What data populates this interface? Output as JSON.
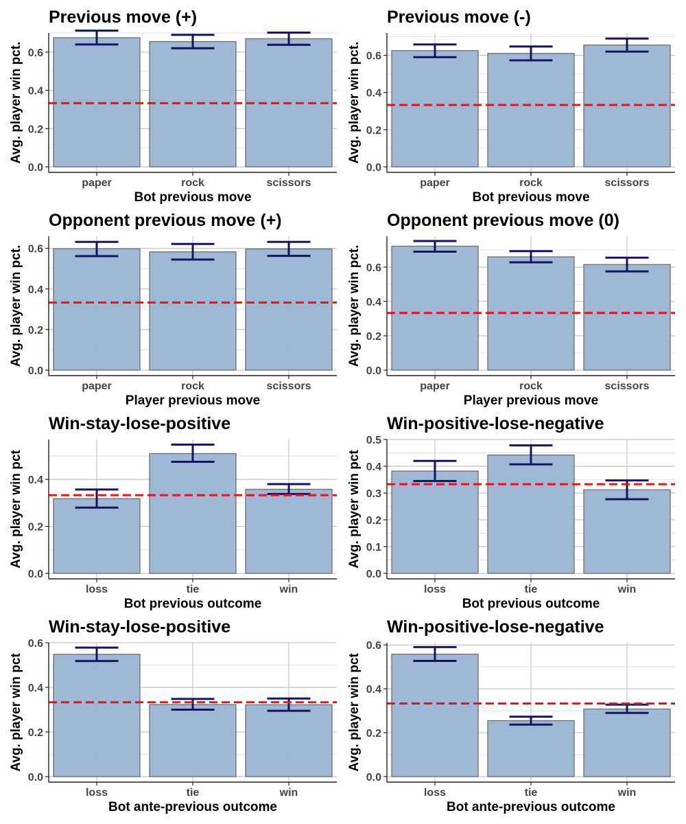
{
  "colors": {
    "bar_fill": "#9ab4d4",
    "bar_stroke": "#6e6e6e",
    "error_bar": "#141460",
    "chance_line": "#ee1111",
    "grid_major": "#c4c4c4",
    "grid_minor": "#e2e2e2",
    "axis": "#222222"
  },
  "chart_data": [
    {
      "type": "bar",
      "title": "Previous move (+)",
      "xlabel": "Bot previous move",
      "ylabel": "Avg. player win pct.",
      "categories": [
        "paper",
        "rock",
        "scissors"
      ],
      "values": [
        0.675,
        0.655,
        0.67
      ],
      "error_low": [
        0.64,
        0.62,
        0.638
      ],
      "error_high": [
        0.712,
        0.69,
        0.702
      ],
      "reference_line": 0.333,
      "ylim": [
        0,
        0.7
      ],
      "yticks": [
        0.0,
        0.2,
        0.4,
        0.6
      ],
      "ytick_labels": [
        "0.0",
        "0.2",
        "0.4",
        "0.6"
      ],
      "grid": true
    },
    {
      "type": "bar",
      "title": "Previous move (-)",
      "xlabel": "Bot previous move",
      "ylabel": "Avg. player win pct.",
      "categories": [
        "paper",
        "rock",
        "scissors"
      ],
      "values": [
        0.625,
        0.61,
        0.655
      ],
      "error_low": [
        0.59,
        0.573,
        0.62
      ],
      "error_high": [
        0.658,
        0.647,
        0.69
      ],
      "reference_line": 0.333,
      "ylim": [
        0,
        0.72
      ],
      "yticks": [
        0.0,
        0.2,
        0.4,
        0.6
      ],
      "ytick_labels": [
        "0.0",
        "0.2",
        "0.4",
        "0.6"
      ],
      "grid": true
    },
    {
      "type": "bar",
      "title": "Opponent previous move (+)",
      "xlabel": "Player previous move",
      "ylabel": "Avg. player win pct.",
      "categories": [
        "paper",
        "rock",
        "scissors"
      ],
      "values": [
        0.598,
        0.583,
        0.597
      ],
      "error_low": [
        0.562,
        0.545,
        0.563
      ],
      "error_high": [
        0.632,
        0.622,
        0.632
      ],
      "reference_line": 0.333,
      "ylim": [
        0,
        0.66
      ],
      "yticks": [
        0.0,
        0.2,
        0.4,
        0.6
      ],
      "ytick_labels": [
        "0.0",
        "0.2",
        "0.4",
        "0.6"
      ],
      "grid": true
    },
    {
      "type": "bar",
      "title": "Opponent previous move (0)",
      "xlabel": "Player previous move",
      "ylabel": "Avg. player win pct.",
      "categories": [
        "paper",
        "rock",
        "scissors"
      ],
      "values": [
        0.722,
        0.66,
        0.615
      ],
      "error_low": [
        0.69,
        0.628,
        0.575
      ],
      "error_high": [
        0.752,
        0.693,
        0.655
      ],
      "reference_line": 0.333,
      "ylim": [
        0,
        0.78
      ],
      "yticks": [
        0.0,
        0.2,
        0.4,
        0.6
      ],
      "ytick_labels": [
        "0.0",
        "0.2",
        "0.4",
        "0.6"
      ],
      "grid": true
    },
    {
      "type": "bar",
      "title": "Win-stay-lose-positive",
      "xlabel": "Bot previous outcome",
      "ylabel": "Avg. player win pct",
      "categories": [
        "loss",
        "tie",
        "win"
      ],
      "values": [
        0.318,
        0.51,
        0.358
      ],
      "error_low": [
        0.28,
        0.475,
        0.338
      ],
      "error_high": [
        0.357,
        0.548,
        0.38
      ],
      "reference_line": 0.333,
      "ylim": [
        0,
        0.57
      ],
      "yticks": [
        0.0,
        0.2,
        0.4
      ],
      "ytick_labels": [
        "0.0",
        "0.2",
        "0.4"
      ],
      "grid": true
    },
    {
      "type": "bar",
      "title": "Win-positive-lose-negative",
      "xlabel": "Bot previous outcome",
      "ylabel": "Avg. player win pct",
      "categories": [
        "loss",
        "tie",
        "win"
      ],
      "values": [
        0.382,
        0.442,
        0.312
      ],
      "error_low": [
        0.345,
        0.407,
        0.277
      ],
      "error_high": [
        0.42,
        0.478,
        0.347
      ],
      "reference_line": 0.333,
      "ylim": [
        0,
        0.5
      ],
      "yticks": [
        0.0,
        0.1,
        0.2,
        0.3,
        0.4,
        0.5
      ],
      "ytick_labels": [
        "0.0",
        "0.1",
        "0.2",
        "0.3",
        "0.4",
        "0.5"
      ],
      "grid": true
    },
    {
      "type": "bar",
      "title": "Win-stay-lose-positive",
      "xlabel": "Bot ante-previous outcome",
      "ylabel": "Avg. player win pct",
      "categories": [
        "loss",
        "tie",
        "win"
      ],
      "values": [
        0.548,
        0.323,
        0.322
      ],
      "error_low": [
        0.518,
        0.3,
        0.295
      ],
      "error_high": [
        0.578,
        0.348,
        0.35
      ],
      "reference_line": 0.333,
      "ylim": [
        0,
        0.6
      ],
      "yticks": [
        0.0,
        0.2,
        0.4,
        0.6
      ],
      "ytick_labels": [
        "0.0",
        "0.2",
        "0.4",
        "0.6"
      ],
      "grid": true
    },
    {
      "type": "bar",
      "title": "Win-positive-lose-negative",
      "xlabel": "Bot ante-previous outcome",
      "ylabel": "Avg. player win pct",
      "categories": [
        "loss",
        "tie",
        "win"
      ],
      "values": [
        0.558,
        0.255,
        0.308
      ],
      "error_low": [
        0.527,
        0.237,
        0.29
      ],
      "error_high": [
        0.59,
        0.273,
        0.328
      ],
      "reference_line": 0.333,
      "ylim": [
        0,
        0.61
      ],
      "yticks": [
        0.0,
        0.2,
        0.4,
        0.6
      ],
      "ytick_labels": [
        "0.0",
        "0.2",
        "0.4",
        "0.6"
      ],
      "grid": true
    }
  ]
}
